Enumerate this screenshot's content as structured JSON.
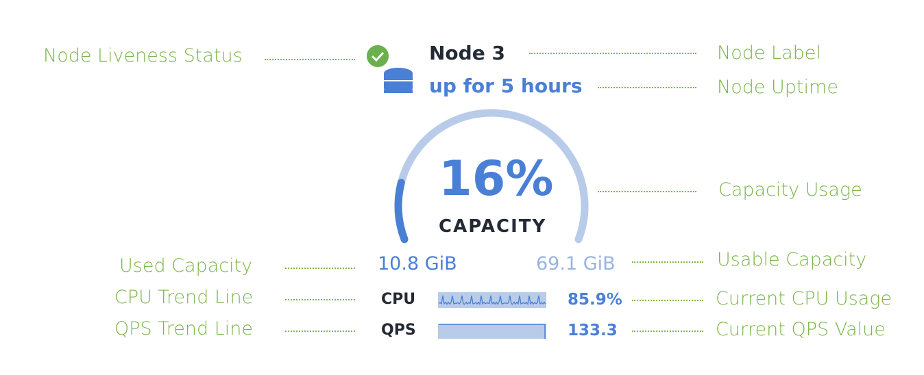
{
  "node": {
    "label": "Node 3",
    "uptime": "up for 5 hours",
    "liveness": "live",
    "capacity_percent_label": "16%",
    "capacity_percent": 16,
    "capacity_label": "CAPACITY",
    "used_capacity": "10.8 GiB",
    "usable_capacity": "69.1 GiB",
    "cpu_label": "CPU",
    "cpu_value": "85.9%",
    "qps_label": "QPS",
    "qps_value": "133.3"
  },
  "annotations": {
    "liveness": "Node Liveness Status",
    "label": "Node Label",
    "uptime": "Node Uptime",
    "capacity_usage": "Capacity Usage",
    "used_capacity": "Used Capacity",
    "usable_capacity": "Usable Capacity",
    "cpu_trend": "CPU Trend Line",
    "cpu_current": "Current CPU Usage",
    "qps_trend": "QPS Trend Line",
    "qps_current": "Current QPS Value"
  },
  "colors": {
    "accent": "#4a7fd6",
    "track": "#b8cbe8",
    "annotation": "#7ab648",
    "ok": "#6ab04c",
    "text": "#242a35"
  }
}
